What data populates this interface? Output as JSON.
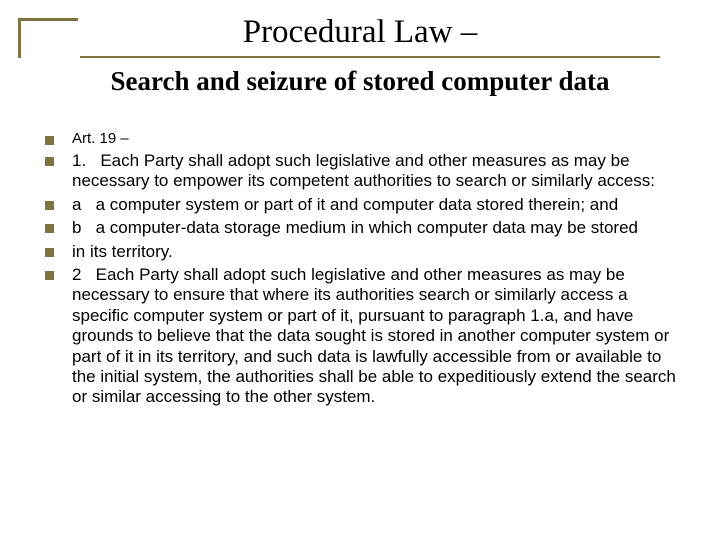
{
  "colors": {
    "accent": "#817340",
    "text": "#000000",
    "background": "#ffffff"
  },
  "title": {
    "line1": "Procedural Law –",
    "line2": "Search and seizure of stored computer data",
    "line1_fontsize": 33,
    "line2_fontsize": 27
  },
  "bullets": [
    {
      "text": "Art. 19 –",
      "small": true
    },
    {
      "text": "1.   Each Party shall adopt such legislative and other measures as may be necessary to empower its competent authorities to search or similarly access:",
      "small": false
    },
    {
      "text": "a   a computer system or part of it and computer data stored therein; and",
      "small": false
    },
    {
      "text": "b   a computer-data storage medium in which computer data may be stored",
      "small": false
    },
    {
      "text": "in its territory.",
      "small": false
    },
    {
      "text": "2   Each Party shall adopt such legislative and other measures as may be necessary to ensure that where its authorities search or similarly access a specific computer system or part of it, pursuant to paragraph 1.a, and have grounds to believe that the data sought is stored in another computer system or part of it in its territory, and such data is lawfully accessible from or available to the initial system, the authorities shall be able to expeditiously extend the search or similar accessing to the other system.",
      "small": false
    }
  ]
}
